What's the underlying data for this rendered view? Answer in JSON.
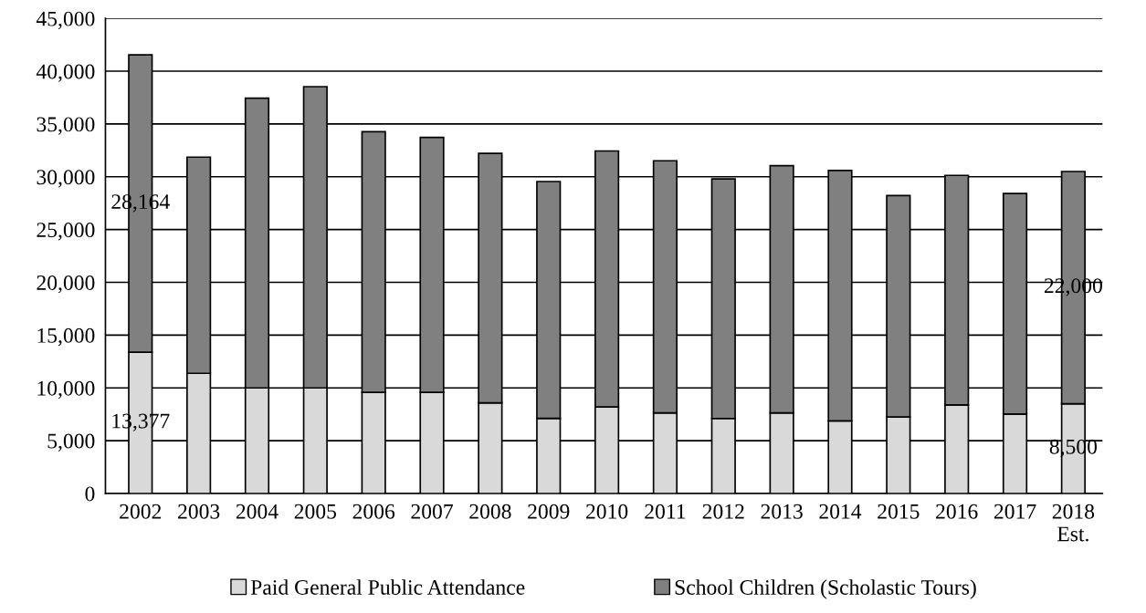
{
  "chart_data": {
    "type": "bar",
    "stacked": true,
    "categories": [
      "2002",
      "2003",
      "2004",
      "2005",
      "2006",
      "2007",
      "2008",
      "2009",
      "2010",
      "2011",
      "2012",
      "2013",
      "2014",
      "2015",
      "2016",
      "2017",
      "2018\nEst."
    ],
    "series": [
      {
        "name": "Paid General Public Attendance",
        "color": "#d9d9d9",
        "values": [
          13377,
          11380,
          10000,
          10000,
          9580,
          9580,
          8590,
          7120,
          8200,
          7630,
          7100,
          7630,
          6870,
          7240,
          8390,
          7530,
          8500
        ],
        "value_labels": [
          "13,377",
          null,
          null,
          null,
          null,
          null,
          null,
          null,
          null,
          null,
          null,
          null,
          null,
          null,
          null,
          null,
          "8,500"
        ]
      },
      {
        "name": "School Children (Scholastic Tours)",
        "color": "#808080",
        "values": [
          28164,
          20480,
          27440,
          28530,
          24680,
          24140,
          23620,
          22430,
          24240,
          23880,
          22700,
          23420,
          23720,
          20980,
          21740,
          20890,
          22000
        ],
        "value_labels": [
          "28,164",
          null,
          null,
          null,
          null,
          null,
          null,
          null,
          null,
          null,
          null,
          null,
          null,
          null,
          null,
          null,
          "22,000"
        ]
      }
    ],
    "ylim": [
      0,
      45000
    ],
    "yticks": [
      {
        "value": 0,
        "label": "0"
      },
      {
        "value": 5000,
        "label": "5,000"
      },
      {
        "value": 10000,
        "label": "10,000"
      },
      {
        "value": 15000,
        "label": "15,000"
      },
      {
        "value": 20000,
        "label": "20,000"
      },
      {
        "value": 25000,
        "label": "25,000"
      },
      {
        "value": 30000,
        "label": "30,000"
      },
      {
        "value": 35000,
        "label": "35,000"
      },
      {
        "value": 40000,
        "label": "40,000"
      },
      {
        "value": 45000,
        "label": "45,000"
      }
    ],
    "grid": "y",
    "legend": "bottom"
  }
}
